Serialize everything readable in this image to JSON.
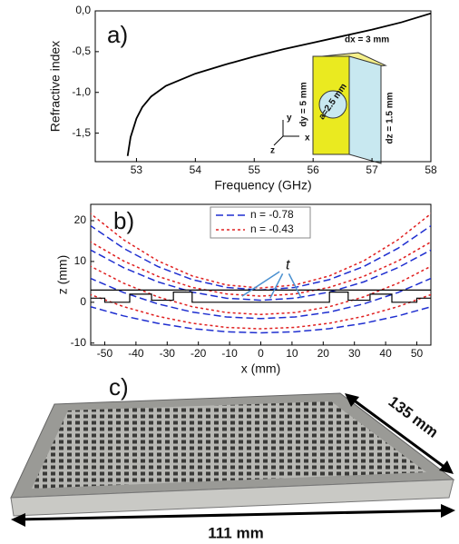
{
  "chart_data": [
    {
      "type": "line",
      "panel": "a)",
      "xlabel": "Frequency (GHz)",
      "ylabel": "Refractive index",
      "xlim": [
        52.3,
        58
      ],
      "ylim": [
        -1.85,
        0
      ],
      "xticks": [
        53,
        54,
        55,
        56,
        57,
        58
      ],
      "yticks": [
        {
          "value": 0,
          "label": "0,0"
        },
        {
          "value": -0.5,
          "label": "-0,5"
        },
        {
          "value": -1,
          "label": "-1,0"
        },
        {
          "value": -1.5,
          "label": "-1,5"
        }
      ],
      "x": [
        52.85,
        52.9,
        53,
        53.1,
        53.25,
        53.5,
        54,
        54.5,
        55,
        55.5,
        56,
        56.5,
        57,
        57.5,
        58
      ],
      "series": [
        {
          "color": "#000000",
          "values": [
            -1.78,
            -1.55,
            -1.32,
            -1.18,
            -1.05,
            -0.92,
            -0.77,
            -0.66,
            -0.56,
            -0.47,
            -0.39,
            -0.31,
            -0.23,
            -0.14,
            -0.03
          ]
        }
      ],
      "inset_labels": [
        "dx = 3 mm",
        "dy = 5 mm",
        "dz = 1.5 mm",
        "a=2.5 mm",
        "x",
        "y",
        "z"
      ]
    },
    {
      "type": "line",
      "panel": "b)",
      "xlabel": "x (mm)",
      "ylabel": "z (mm)",
      "xlim": [
        -54.5,
        54.5
      ],
      "ylim": [
        -10.5,
        24
      ],
      "xticks": [
        -50,
        -40,
        -30,
        -20,
        -10,
        0,
        10,
        20,
        30,
        40,
        50
      ],
      "yticks": [
        -10,
        0,
        10,
        20
      ],
      "x": [
        -55,
        -44,
        -33,
        -22,
        -11,
        0,
        11,
        22,
        33,
        44,
        55
      ],
      "series": [
        {
          "name": "n = -0.78",
          "color": "#1f2fd0",
          "curves": [
            [
              19,
              13.24,
              8.76,
              5.56,
              3.64,
              3,
              3.64,
              5.56,
              8.76,
              13.24,
              19
            ],
            [
              13,
              8.5,
              5,
              2.5,
              1,
              0.5,
              1,
              2.5,
              5,
              8.5,
              13
            ],
            [
              6,
              2.4,
              -0.4,
              -2.4,
              -3.6,
              -4,
              -3.6,
              -2.4,
              -0.4,
              2.4,
              6
            ],
            [
              -1,
              -3.34,
              -5.16,
              -6.46,
              -7.24,
              -7.5,
              -7.24,
              -6.46,
              -5.16,
              -3.34,
              -1
            ]
          ]
        },
        {
          "name": "n = -0.43",
          "color": "#e02020",
          "curves": [
            [
              22,
              15.34,
              10.16,
              6.46,
              4.24,
              3.5,
              4.24,
              6.46,
              10.16,
              15.34,
              22
            ],
            [
              15,
              10.14,
              6.36,
              3.66,
              2.04,
              1.5,
              2.04,
              3.66,
              6.36,
              10.14,
              15
            ],
            [
              9,
              4.68,
              1.32,
              -1.08,
              -2.52,
              -3,
              -2.52,
              -1.08,
              1.32,
              4.68,
              9
            ],
            [
              2,
              -1.06,
              -3.44,
              -5.14,
              -6.16,
              -6.5,
              -6.16,
              -5.14,
              -3.44,
              -1.06,
              2
            ]
          ]
        }
      ],
      "profile": {
        "x": [
          -55,
          -50,
          -50,
          -42,
          -42,
          -35,
          -35,
          -28,
          -28,
          -22,
          -22,
          22,
          22,
          28,
          28,
          35,
          35,
          42,
          42,
          50,
          50,
          55
        ],
        "values": [
          1,
          1,
          0,
          0,
          2,
          2,
          0.5,
          0.5,
          2.5,
          2.5,
          0,
          0,
          2.5,
          2.5,
          0.5,
          0.5,
          2,
          2,
          0,
          0,
          1,
          1
        ]
      },
      "profile_top": {
        "x": [
          -55,
          55
        ],
        "values": [
          3,
          3
        ]
      },
      "annotation": "t"
    }
  ],
  "photo": {
    "panel": "c)",
    "width_label": "111 mm",
    "depth_label": "135 mm"
  }
}
